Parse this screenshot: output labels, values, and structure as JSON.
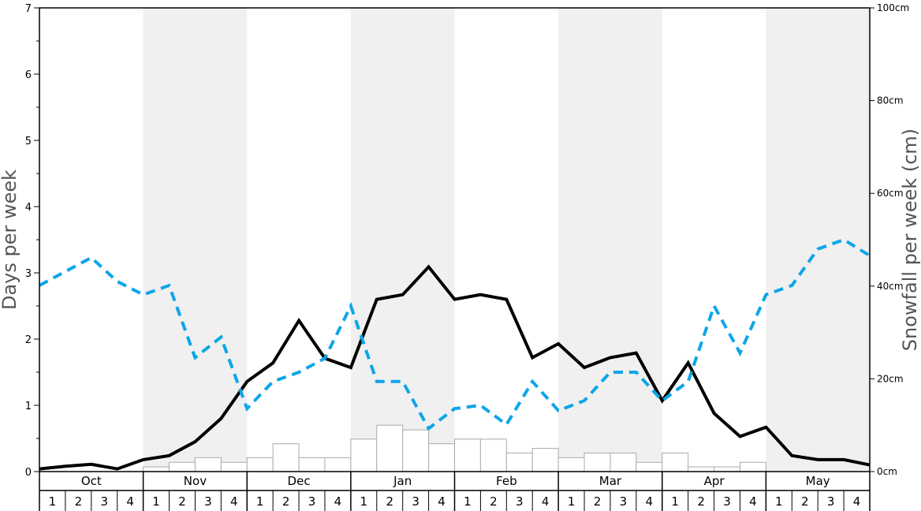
{
  "chart_data": {
    "type": "bar",
    "ylabel_left": "Days per week",
    "ylabel_right": "Snowfall per week (cm)",
    "ylim_left": [
      0,
      7
    ],
    "ylim_right": [
      0,
      100
    ],
    "left_ticks": [
      "0",
      "1",
      "2",
      "3",
      "4",
      "5",
      "6",
      "7"
    ],
    "right_ticks": [
      "0cm",
      "20cm",
      "40cm",
      "60cm",
      "80cm",
      "100cm"
    ],
    "months": [
      "Oct",
      "Nov",
      "Dec",
      "Jan",
      "Feb",
      "Mar",
      "Apr",
      "May"
    ],
    "week_labels": [
      "1",
      "2",
      "3",
      "4"
    ],
    "shaded_months": [
      false,
      true,
      false,
      true,
      false,
      true,
      false,
      true
    ],
    "colors": {
      "shade": "#f0f0f0",
      "dashed": "#0ea5e9",
      "solid": "#000000",
      "bar_fill": "#ffffff",
      "bar_stroke": "#aaaaaa"
    },
    "series": [
      {
        "type": "bar",
        "axis": "right",
        "values": [
          0,
          0,
          0,
          0,
          1,
          2,
          3,
          2,
          3,
          6,
          3,
          3,
          7,
          10,
          9,
          6,
          7,
          7,
          4,
          5,
          3,
          4,
          4,
          2,
          4,
          1,
          1,
          2,
          0,
          0,
          0,
          0
        ]
      },
      {
        "type": "line",
        "axis": "left",
        "style": "solid",
        "values": [
          0.04,
          0.08,
          0.11,
          0.04,
          0.18,
          0.24,
          0.45,
          0.8,
          1.36,
          1.64,
          2.28,
          1.71,
          1.57,
          2.6,
          2.67,
          3.09,
          2.6,
          2.67,
          2.6,
          1.72,
          1.93,
          1.57,
          1.72,
          1.79,
          1.07,
          1.64,
          0.88,
          0.53,
          0.67,
          0.24,
          0.18,
          0.18,
          0.1
        ]
      },
      {
        "type": "line",
        "axis": "left",
        "style": "dashed",
        "values": [
          2.81,
          3.02,
          3.23,
          2.87,
          2.67,
          2.81,
          1.72,
          2.03,
          0.95,
          1.36,
          1.5,
          1.71,
          2.5,
          1.36,
          1.36,
          0.65,
          0.95,
          1.0,
          0.71,
          1.36,
          0.92,
          1.07,
          1.5,
          1.5,
          1.07,
          1.36,
          2.5,
          1.79,
          2.67,
          2.81,
          3.36,
          3.5,
          3.26
        ]
      }
    ]
  }
}
